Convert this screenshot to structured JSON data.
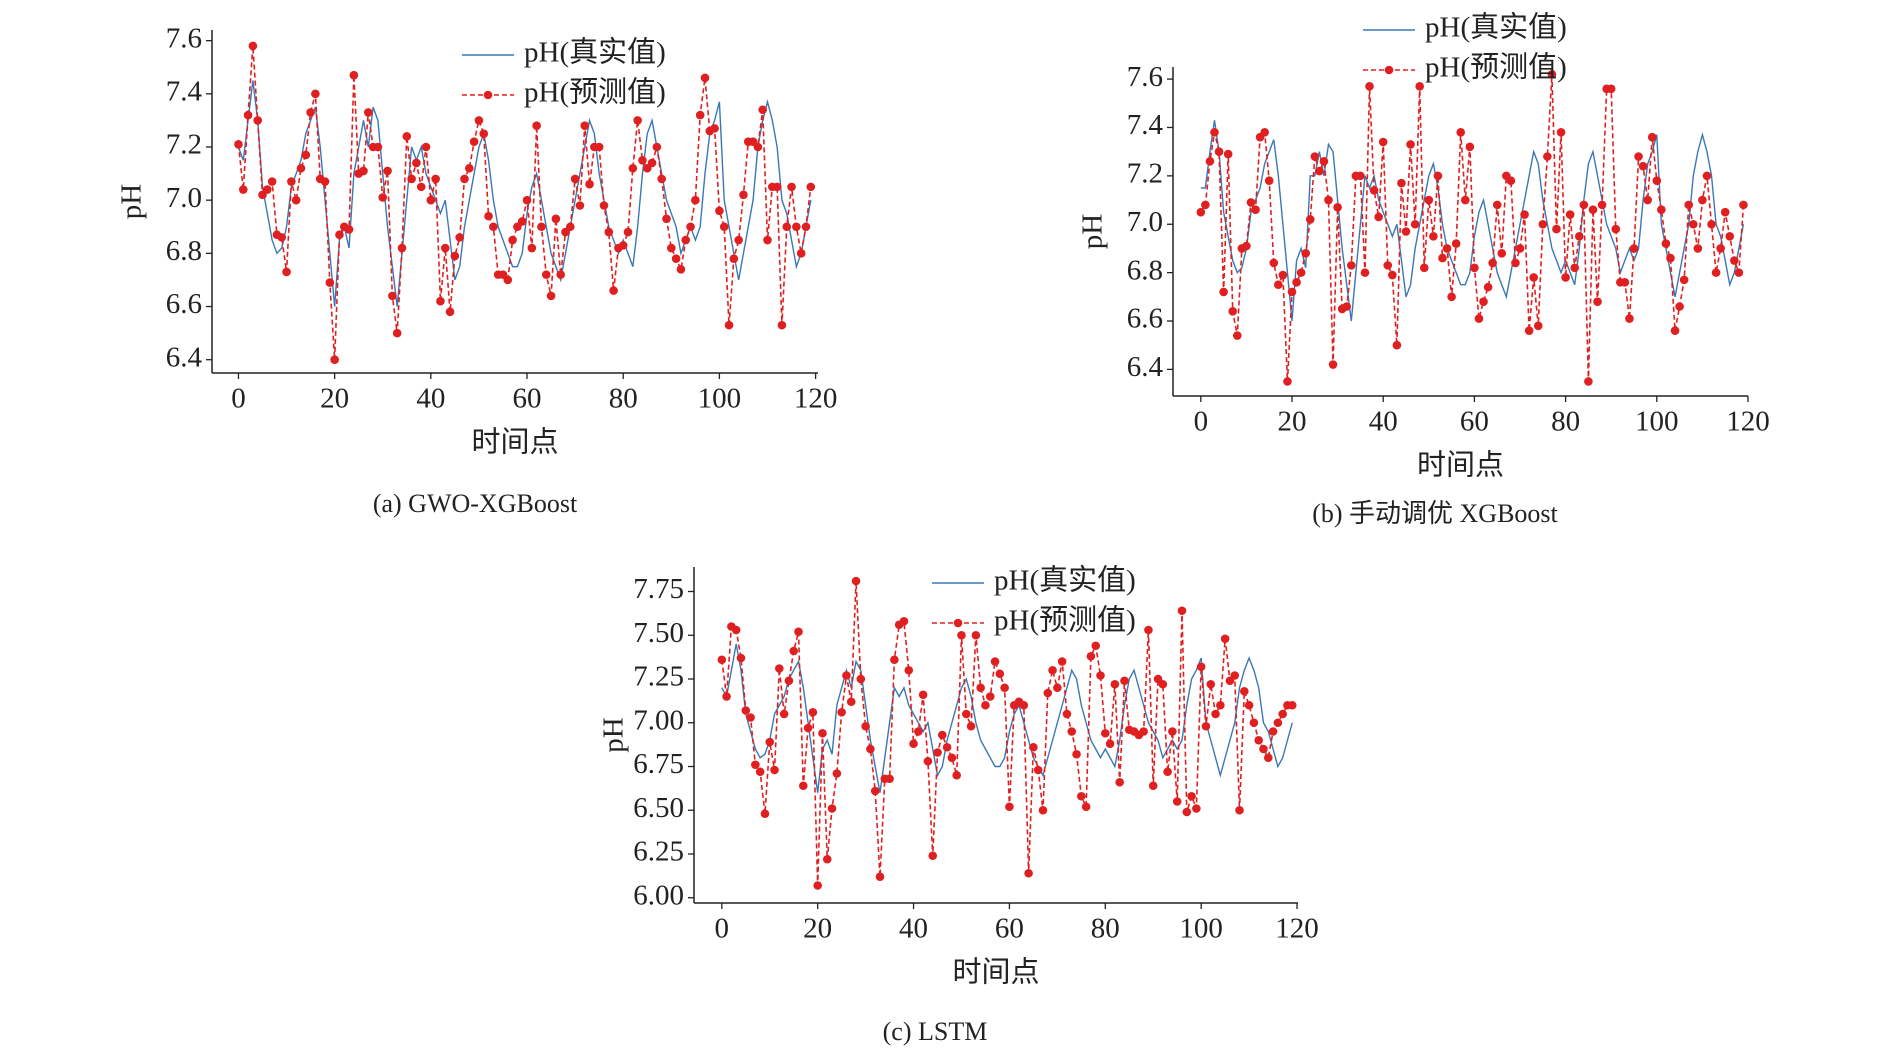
{
  "chart_data": [
    {
      "type": "line",
      "caption": "(a) GWO-XGBoost",
      "xlabel": "时间点",
      "ylabel": "pH",
      "xlim": [
        -5.5,
        120.5
      ],
      "ylim": [
        6.35,
        7.64
      ],
      "xticks": [
        0,
        20,
        40,
        60,
        80,
        100,
        120
      ],
      "yticks": [
        6.4,
        6.6,
        6.8,
        {
          "value": 7,
          "label": "7.0"
        },
        7.2,
        7.4,
        7.6
      ],
      "x": [
        0,
        1,
        2,
        3,
        4,
        5,
        6,
        7,
        8,
        9,
        10,
        11,
        12,
        13,
        14,
        15,
        16,
        17,
        18,
        19,
        20,
        21,
        22,
        23,
        24,
        25,
        26,
        27,
        28,
        29,
        30,
        31,
        32,
        33,
        34,
        35,
        36,
        37,
        38,
        39,
        40,
        41,
        42,
        43,
        44,
        45,
        46,
        47,
        48,
        49,
        50,
        51,
        52,
        53,
        54,
        55,
        56,
        57,
        58,
        59,
        60,
        61,
        62,
        63,
        64,
        65,
        66,
        67,
        68,
        69,
        70,
        71,
        72,
        73,
        74,
        75,
        76,
        77,
        78,
        79,
        80,
        81,
        82,
        83,
        84,
        85,
        86,
        87,
        88,
        89,
        90,
        91,
        92,
        93,
        94,
        95,
        96,
        97,
        98,
        99,
        100,
        101,
        102,
        103,
        104,
        105,
        106,
        107,
        108,
        109,
        110,
        111,
        112,
        113,
        114,
        115,
        116,
        117,
        118,
        119
      ],
      "series": [
        {
          "name": "pH(真实值)",
          "color": "#3a78b5",
          "linestyle": "solid",
          "values": [
            7.2,
            7.15,
            7.3,
            7.45,
            7.3,
            7.05,
            6.95,
            6.85,
            6.8,
            6.82,
            6.9,
            7.05,
            7.1,
            7.15,
            7.25,
            7.3,
            7.35,
            7.2,
            7.0,
            6.8,
            6.6,
            6.85,
            6.9,
            6.82,
            7.1,
            7.2,
            7.3,
            7.2,
            7.35,
            7.3,
            7.1,
            6.9,
            6.75,
            6.6,
            6.8,
            7.0,
            7.2,
            7.15,
            7.2,
            7.1,
            7.05,
            7.0,
            6.95,
            7.0,
            6.85,
            6.7,
            6.75,
            6.9,
            7.0,
            7.1,
            7.2,
            7.25,
            7.15,
            7.0,
            6.9,
            6.85,
            6.8,
            6.75,
            6.75,
            6.8,
            6.95,
            7.05,
            7.1,
            7.0,
            6.9,
            6.8,
            6.75,
            6.7,
            6.8,
            6.9,
            7.0,
            7.1,
            7.2,
            7.3,
            7.25,
            7.1,
            7.0,
            6.9,
            6.85,
            6.8,
            6.85,
            6.8,
            6.75,
            6.9,
            7.1,
            7.25,
            7.3,
            7.2,
            7.1,
            7.0,
            6.95,
            6.9,
            6.8,
            6.85,
            6.9,
            6.85,
            6.9,
            7.1,
            7.25,
            7.3,
            7.37,
            7.0,
            6.9,
            6.8,
            6.7,
            6.8,
            6.9,
            7.0,
            7.2,
            7.3,
            7.37,
            7.3,
            7.2,
            7.0,
            6.95,
            6.85,
            6.75,
            6.8,
            6.9,
            7.0
          ]
        },
        {
          "name": "pH(预测值)",
          "color": "#e02020",
          "linestyle": "dashed",
          "marker": "circle",
          "values": [
            7.21,
            7.04,
            7.32,
            7.58,
            7.3,
            7.02,
            7.04,
            7.07,
            6.87,
            6.86,
            6.73,
            7.07,
            7.0,
            7.12,
            7.17,
            7.33,
            7.4,
            7.08,
            7.07,
            6.69,
            6.4,
            6.87,
            6.9,
            6.89,
            7.47,
            7.1,
            7.11,
            7.33,
            7.2,
            7.2,
            7.01,
            7.11,
            6.64,
            6.5,
            6.82,
            7.24,
            7.08,
            7.14,
            7.05,
            7.2,
            7.0,
            7.08,
            6.62,
            6.82,
            6.58,
            6.79,
            6.86,
            7.08,
            7.12,
            7.22,
            7.3,
            7.25,
            6.94,
            6.9,
            6.72,
            6.72,
            6.7,
            6.85,
            6.9,
            6.92,
            7.0,
            6.82,
            7.28,
            6.9,
            6.72,
            6.64,
            6.93,
            6.72,
            6.88,
            6.9,
            7.08,
            6.98,
            7.28,
            7.06,
            7.2,
            7.2,
            6.98,
            6.88,
            6.66,
            6.82,
            6.83,
            6.88,
            7.12,
            7.3,
            7.15,
            7.12,
            7.14,
            7.2,
            7.08,
            6.93,
            6.82,
            6.78,
            6.74,
            6.85,
            6.9,
            7.0,
            7.32,
            7.46,
            7.26,
            7.27,
            6.96,
            6.9,
            6.53,
            6.78,
            6.85,
            7.02,
            7.22,
            7.22,
            7.2,
            7.34,
            6.85,
            7.05,
            7.05,
            6.53,
            6.9,
            7.05,
            6.9,
            6.8,
            6.9,
            7.05
          ]
        }
      ]
    },
    {
      "type": "line",
      "caption": "(b) 手动调优 XGBoost",
      "xlabel": "时间点",
      "ylabel": "pH",
      "xlim": [
        -6.1,
        120
      ],
      "ylim": [
        6.29,
        7.65
      ],
      "xticks": [
        0,
        20,
        40,
        60,
        80,
        100,
        120
      ],
      "yticks": [
        6.4,
        6.6,
        6.8,
        {
          "value": 7,
          "label": "7.0"
        },
        7.2,
        7.4,
        7.6
      ],
      "x": [
        0,
        1,
        2,
        3,
        4,
        5,
        6,
        7,
        8,
        9,
        10,
        11,
        12,
        13,
        14,
        15,
        16,
        17,
        18,
        19,
        20,
        21,
        22,
        23,
        24,
        25,
        26,
        27,
        28,
        29,
        30,
        31,
        32,
        33,
        34,
        35,
        36,
        37,
        38,
        39,
        40,
        41,
        42,
        43,
        44,
        45,
        46,
        47,
        48,
        49,
        50,
        51,
        52,
        53,
        54,
        55,
        56,
        57,
        58,
        59,
        60,
        61,
        62,
        63,
        64,
        65,
        66,
        67,
        68,
        69,
        70,
        71,
        72,
        73,
        74,
        75,
        76,
        77,
        78,
        79,
        80,
        81,
        82,
        83,
        84,
        85,
        86,
        87,
        88,
        89,
        90,
        91,
        92,
        93,
        94,
        95,
        96,
        97,
        98,
        99,
        100,
        101,
        102,
        103,
        104,
        105,
        106,
        107,
        108,
        109,
        110,
        111,
        112,
        113,
        114,
        115,
        116,
        117,
        118,
        119
      ],
      "series": [
        {
          "name": "pH(真实值)",
          "color": "#3a78b5",
          "linestyle": "solid",
          "values": [
            7.15,
            7.15,
            7.3,
            7.43,
            7.3,
            7.05,
            6.95,
            6.85,
            6.8,
            6.82,
            6.9,
            7.05,
            7.1,
            7.15,
            7.25,
            7.3,
            7.35,
            7.2,
            7.0,
            6.8,
            6.6,
            6.85,
            6.9,
            6.82,
            7.2,
            7.2,
            7.3,
            7.2,
            7.33,
            7.3,
            7.1,
            6.9,
            6.75,
            6.6,
            6.8,
            7.0,
            7.2,
            7.15,
            7.2,
            7.1,
            7.05,
            7.0,
            6.95,
            7.0,
            6.85,
            6.7,
            6.75,
            6.9,
            7.0,
            7.1,
            7.2,
            7.25,
            7.15,
            7.0,
            6.9,
            6.85,
            6.8,
            6.75,
            6.75,
            6.8,
            6.95,
            7.05,
            7.1,
            7.0,
            6.9,
            6.8,
            6.75,
            6.7,
            6.8,
            6.9,
            7.0,
            7.1,
            7.2,
            7.3,
            7.25,
            7.1,
            7.0,
            6.9,
            6.85,
            6.8,
            6.85,
            6.8,
            6.75,
            6.9,
            7.1,
            7.25,
            7.3,
            7.2,
            7.1,
            7.0,
            6.95,
            6.9,
            6.8,
            6.85,
            6.9,
            6.85,
            6.9,
            7.1,
            7.25,
            7.3,
            7.37,
            7.0,
            6.9,
            6.8,
            6.7,
            6.8,
            6.9,
            7.0,
            7.2,
            7.3,
            7.37,
            7.3,
            7.2,
            7.0,
            6.95,
            6.85,
            6.75,
            6.8,
            6.9,
            7.0
          ]
        },
        {
          "name": "pH(预测值)",
          "color": "#e02020",
          "linestyle": "dashed",
          "marker": "circle",
          "values": [
            7.05,
            7.08,
            7.26,
            7.38,
            7.3,
            6.72,
            7.29,
            6.64,
            6.54,
            6.9,
            6.91,
            7.09,
            7.06,
            7.36,
            7.38,
            7.18,
            6.84,
            6.75,
            6.79,
            6.35,
            6.72,
            6.76,
            6.8,
            6.88,
            7.02,
            7.28,
            7.22,
            7.26,
            7.1,
            6.42,
            7.07,
            6.65,
            6.66,
            6.83,
            7.2,
            7.2,
            6.8,
            7.57,
            7.14,
            7.03,
            7.34,
            6.83,
            6.79,
            6.5,
            7.17,
            6.97,
            7.33,
            7.0,
            7.57,
            6.82,
            7.1,
            6.95,
            7.2,
            6.86,
            6.9,
            6.7,
            6.92,
            7.38,
            7.1,
            7.32,
            6.82,
            6.61,
            6.68,
            6.74,
            6.84,
            7.08,
            6.88,
            7.2,
            7.18,
            6.84,
            6.9,
            7.04,
            6.56,
            6.78,
            6.58,
            7.0,
            7.28,
            7.62,
            6.98,
            7.38,
            6.78,
            7.04,
            6.82,
            6.95,
            7.08,
            6.35,
            7.06,
            6.68,
            7.08,
            7.56,
            7.56,
            6.98,
            6.76,
            6.76,
            6.61,
            6.9,
            7.28,
            7.24,
            7.1,
            7.36,
            7.18,
            7.06,
            6.92,
            6.86,
            6.56,
            6.66,
            6.77,
            7.08,
            7.0,
            6.9,
            7.1,
            7.2,
            7.0,
            6.8,
            6.9,
            7.05,
            6.95,
            6.85,
            6.8,
            7.08
          ]
        }
      ]
    },
    {
      "type": "line",
      "caption": "(c) LSTM",
      "xlabel": "时间点",
      "ylabel": "pH",
      "xlim": [
        -5.8,
        120.2
      ],
      "ylim": [
        5.97,
        7.89
      ],
      "xticks": [
        0,
        20,
        40,
        60,
        80,
        100,
        120
      ],
      "yticks": [
        {
          "value": 6,
          "label": "6.00"
        },
        6.25,
        {
          "value": 6.5,
          "label": "6.50"
        },
        6.75,
        {
          "value": 7,
          "label": "7.00"
        },
        7.25,
        {
          "value": 7.5,
          "label": "7.50"
        },
        7.75
      ],
      "x": [
        0,
        1,
        2,
        3,
        4,
        5,
        6,
        7,
        8,
        9,
        10,
        11,
        12,
        13,
        14,
        15,
        16,
        17,
        18,
        19,
        20,
        21,
        22,
        23,
        24,
        25,
        26,
        27,
        28,
        29,
        30,
        31,
        32,
        33,
        34,
        35,
        36,
        37,
        38,
        39,
        40,
        41,
        42,
        43,
        44,
        45,
        46,
        47,
        48,
        49,
        50,
        51,
        52,
        53,
        54,
        55,
        56,
        57,
        58,
        59,
        60,
        61,
        62,
        63,
        64,
        65,
        66,
        67,
        68,
        69,
        70,
        71,
        72,
        73,
        74,
        75,
        76,
        77,
        78,
        79,
        80,
        81,
        82,
        83,
        84,
        85,
        86,
        87,
        88,
        89,
        90,
        91,
        92,
        93,
        94,
        95,
        96,
        97,
        98,
        99,
        100,
        101,
        102,
        103,
        104,
        105,
        106,
        107,
        108,
        109,
        110,
        111,
        112,
        113,
        114,
        115,
        116,
        117,
        118,
        119
      ],
      "series": [
        {
          "name": "pH(真实值)",
          "color": "#3a78b5",
          "linestyle": "solid",
          "values": [
            7.2,
            7.15,
            7.3,
            7.45,
            7.3,
            7.05,
            6.95,
            6.85,
            6.8,
            6.82,
            6.9,
            7.05,
            7.1,
            7.15,
            7.25,
            7.3,
            7.35,
            7.2,
            7.0,
            6.8,
            6.6,
            6.85,
            6.9,
            6.82,
            7.1,
            7.2,
            7.3,
            7.2,
            7.35,
            7.3,
            7.1,
            6.9,
            6.75,
            6.6,
            6.8,
            7.0,
            7.2,
            7.15,
            7.2,
            7.1,
            7.05,
            7.0,
            6.95,
            7.0,
            6.85,
            6.7,
            6.75,
            6.9,
            7.0,
            7.1,
            7.2,
            7.25,
            7.15,
            7.0,
            6.9,
            6.85,
            6.8,
            6.75,
            6.75,
            6.8,
            6.95,
            7.05,
            7.1,
            7.0,
            6.9,
            6.8,
            6.75,
            6.7,
            6.8,
            6.9,
            7.0,
            7.1,
            7.2,
            7.3,
            7.25,
            7.1,
            7.0,
            6.9,
            6.85,
            6.8,
            6.85,
            6.8,
            6.75,
            6.9,
            7.1,
            7.25,
            7.3,
            7.2,
            7.1,
            7.0,
            6.95,
            6.9,
            6.8,
            6.85,
            6.9,
            6.85,
            6.9,
            7.1,
            7.25,
            7.3,
            7.37,
            7.0,
            6.9,
            6.8,
            6.7,
            6.8,
            6.9,
            7.0,
            7.2,
            7.3,
            7.37,
            7.3,
            7.2,
            7.0,
            6.95,
            6.85,
            6.75,
            6.8,
            6.9,
            7.0
          ]
        },
        {
          "name": "pH(预测值)",
          "color": "#e02020",
          "linestyle": "dashed",
          "marker": "circle",
          "values": [
            7.36,
            7.15,
            7.55,
            7.53,
            7.37,
            7.07,
            7.03,
            6.76,
            6.72,
            6.48,
            6.89,
            6.73,
            7.31,
            7.05,
            7.24,
            7.41,
            7.52,
            6.64,
            6.97,
            7.06,
            6.07,
            6.94,
            6.22,
            6.51,
            6.71,
            7.06,
            7.27,
            7.12,
            7.81,
            7.25,
            6.98,
            6.85,
            6.61,
            6.12,
            6.68,
            6.68,
            7.36,
            7.56,
            7.58,
            7.3,
            6.88,
            6.95,
            7.16,
            6.78,
            6.24,
            6.83,
            6.93,
            6.86,
            6.8,
            6.7,
            7.5,
            7.05,
            6.98,
            7.5,
            7.2,
            7.1,
            7.15,
            7.35,
            7.28,
            7.2,
            6.52,
            7.1,
            7.12,
            7.1,
            6.14,
            6.86,
            6.73,
            6.5,
            7.17,
            7.3,
            7.2,
            7.35,
            7.05,
            6.95,
            6.82,
            6.58,
            6.52,
            7.38,
            7.44,
            7.27,
            6.94,
            6.88,
            7.22,
            6.66,
            7.24,
            6.96,
            6.95,
            6.93,
            6.95,
            7.53,
            6.64,
            7.25,
            7.22,
            6.72,
            6.95,
            6.55,
            7.64,
            6.49,
            6.58,
            6.51,
            7.32,
            6.98,
            7.22,
            7.05,
            7.1,
            7.48,
            7.24,
            7.27,
            6.5,
            7.18,
            7.1,
            7.0,
            6.9,
            6.85,
            6.8,
            6.95,
            7.0,
            7.05,
            7.1,
            7.1
          ]
        }
      ]
    }
  ]
}
